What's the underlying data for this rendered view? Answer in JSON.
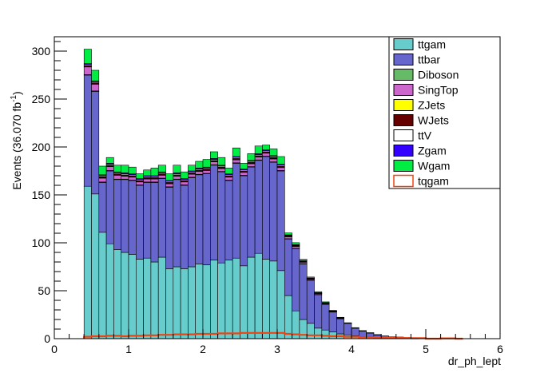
{
  "chart_data": {
    "type": "bar",
    "stacked": true,
    "xlabel": "dr_ph_lept",
    "ylabel": "Events (36.070 fb",
    "ylabel_sup": "-1",
    "ylabel_close": ")",
    "xlim": [
      0,
      6
    ],
    "ylim": [
      0,
      315
    ],
    "xticks": [
      0,
      1,
      2,
      3,
      4,
      5,
      6
    ],
    "yticks": [
      0,
      50,
      100,
      150,
      200,
      250,
      300
    ],
    "grid": false,
    "legend_position": "top-right",
    "bin_width": 0.1,
    "x": [
      0.45,
      0.55,
      0.65,
      0.75,
      0.85,
      0.95,
      1.05,
      1.15,
      1.25,
      1.35,
      1.45,
      1.55,
      1.65,
      1.75,
      1.85,
      1.95,
      2.05,
      2.15,
      2.25,
      2.35,
      2.45,
      2.55,
      2.65,
      2.75,
      2.85,
      2.95,
      3.05,
      3.15,
      3.25,
      3.35,
      3.45,
      3.55,
      3.65,
      3.75,
      3.85,
      3.95,
      4.05,
      4.15,
      4.25,
      4.35,
      4.45,
      4.55,
      4.65,
      4.75,
      4.85,
      4.95,
      5.05,
      5.15,
      5.25,
      5.35,
      5.45
    ],
    "series": [
      {
        "name": "ttgam",
        "color": "#66cccc",
        "values": [
          159,
          151,
          111,
          99,
          93,
          90,
          88,
          83,
          84,
          80,
          85,
          73,
          75,
          73,
          75,
          78,
          77,
          82,
          79,
          82,
          84,
          76,
          85,
          89,
          83,
          81,
          71,
          45,
          29,
          20,
          16,
          11,
          9,
          7,
          5,
          4,
          3,
          2,
          2,
          1,
          1,
          0.5,
          0.5,
          0.3,
          0.2,
          0,
          0,
          0,
          0,
          0,
          0
        ]
      },
      {
        "name": "ttbar",
        "color": "#6666cc",
        "values": [
          116,
          107,
          52,
          76,
          73,
          76,
          77,
          77,
          79,
          83,
          82,
          85,
          91,
          87,
          93,
          93,
          95,
          99,
          95,
          83,
          99,
          94,
          94,
          97,
          107,
          103,
          104,
          59,
          65,
          58,
          45,
          35,
          27,
          21,
          16,
          12,
          8,
          6,
          4,
          3,
          2,
          1.5,
          1.2,
          0.8,
          0.5,
          0.3,
          0,
          0,
          0,
          0,
          0
        ]
      },
      {
        "name": "Diboson",
        "color": "#66bb66",
        "values": [
          0.5,
          0.5,
          0.5,
          0.5,
          0.5,
          0.5,
          0.5,
          0.5,
          0.5,
          0.5,
          0.5,
          0.5,
          0.5,
          0.5,
          0.5,
          0.5,
          0.5,
          0.5,
          0.5,
          0.5,
          0.5,
          0.5,
          0.5,
          0.5,
          0.5,
          0.5,
          0.5,
          0.3,
          0.3,
          0.3,
          0.2,
          0.2,
          0.1,
          0.1,
          0.1,
          0,
          0,
          0,
          0,
          0,
          0,
          0,
          0,
          0,
          0,
          0,
          0,
          0,
          0,
          0,
          0
        ]
      },
      {
        "name": "SingTop",
        "color": "#cc66cc",
        "values": [
          8,
          7,
          4,
          4,
          4,
          3,
          3,
          3,
          3,
          3,
          3,
          3,
          3,
          3,
          3,
          3,
          3,
          3,
          3,
          3,
          3,
          3,
          3,
          3,
          3,
          3,
          3,
          2,
          2,
          1.5,
          1,
          1,
          0.8,
          0.5,
          0.5,
          0.3,
          0.2,
          0.2,
          0.1,
          0.1,
          0,
          0,
          0,
          0,
          0,
          0,
          0,
          0,
          0,
          0,
          0
        ]
      },
      {
        "name": "ZJets",
        "color": "#ffff00",
        "values": [
          0.5,
          0.5,
          0.5,
          0.5,
          0.5,
          0.5,
          0.5,
          0.5,
          0.5,
          0.5,
          0.5,
          0.5,
          0.5,
          0.5,
          0.5,
          0.5,
          0.5,
          0.5,
          0.5,
          0.5,
          0.5,
          0.5,
          0.5,
          0.5,
          0.5,
          0.5,
          0.5,
          0.3,
          0.3,
          0.3,
          0.2,
          0.2,
          0.1,
          0.1,
          0,
          0,
          0,
          0,
          0,
          0,
          0,
          0,
          0,
          0,
          0,
          0,
          0,
          0,
          0,
          0,
          0
        ]
      },
      {
        "name": "WJets",
        "color": "#660000",
        "values": [
          1,
          1,
          1,
          1,
          1,
          1,
          1,
          1,
          1,
          1,
          1,
          1,
          1,
          1,
          1,
          1,
          1,
          1,
          1,
          1,
          1,
          1,
          1,
          1,
          1,
          1,
          1,
          0.6,
          0.5,
          0.4,
          0.3,
          0.2,
          0.2,
          0.1,
          0.1,
          0,
          0,
          0,
          0,
          0,
          0,
          0,
          0,
          0,
          0,
          0,
          0,
          0,
          0,
          0,
          0
        ]
      },
      {
        "name": "ttV",
        "color": "#ffffff",
        "values": [
          1,
          1,
          1,
          1,
          1,
          1,
          1,
          1,
          1,
          1,
          1,
          1,
          1,
          1,
          1,
          1,
          1,
          1,
          1,
          1,
          1,
          1,
          1,
          1,
          1,
          1,
          1,
          0.6,
          0.5,
          0.4,
          0.3,
          0.2,
          0.2,
          0.1,
          0.1,
          0,
          0,
          0,
          0,
          0,
          0,
          0,
          0,
          0,
          0,
          0,
          0,
          0,
          0,
          0,
          0
        ]
      },
      {
        "name": "Zgam",
        "color": "#3300ff",
        "values": [
          1,
          1,
          1,
          1,
          1,
          1,
          1,
          1,
          1,
          1,
          1,
          1,
          1,
          1,
          1,
          1,
          1,
          1,
          1,
          1,
          1,
          1,
          1,
          1,
          1,
          1,
          1,
          0.5,
          0.5,
          0.4,
          0.3,
          0.2,
          0.2,
          0.1,
          0.1,
          0,
          0,
          0,
          0,
          0,
          0,
          0,
          0,
          0,
          0,
          0,
          0,
          0,
          0,
          0,
          0
        ]
      },
      {
        "name": "Wgam",
        "color": "#00ee44",
        "values": [
          15,
          11,
          9,
          6,
          7,
          8,
          7,
          5,
          6,
          8,
          7,
          7,
          8,
          7,
          6,
          7,
          8,
          7,
          8,
          6,
          9,
          6,
          7,
          8,
          5,
          7,
          8,
          2,
          2,
          1.5,
          1,
          1,
          0.8,
          0.5,
          0.4,
          0.3,
          0.3,
          0.2,
          0.1,
          0.1,
          0,
          0,
          0,
          0,
          0,
          0,
          0,
          0,
          0,
          0,
          0
        ]
      }
    ],
    "overlay": {
      "name": "tqgam",
      "color": "#ee4411",
      "style": "hollow",
      "values": [
        2,
        2.5,
        2.5,
        3,
        3,
        2.5,
        3,
        3,
        3.5,
        3.5,
        4,
        4,
        4.5,
        4.5,
        4.5,
        5,
        5,
        5,
        5.5,
        5.5,
        5.5,
        6,
        6,
        6,
        6,
        6,
        6,
        5,
        4.5,
        4,
        3.5,
        3.5,
        3,
        2.5,
        2.5,
        2,
        2,
        1.5,
        1.5,
        1,
        1,
        1,
        0.8,
        0.6,
        0.5,
        0.5,
        0,
        0,
        0.3,
        0.3,
        0
      ]
    }
  }
}
